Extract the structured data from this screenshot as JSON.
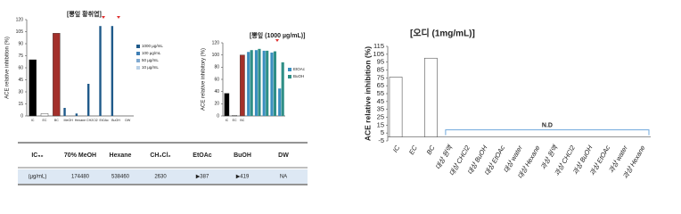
{
  "chart_data": [
    {
      "type": "bar",
      "title": "[뽕잎 황취엽]",
      "y_label": "ACE relative inhibition (%)",
      "ylim": [
        0,
        120
      ],
      "yticks": [
        0,
        15,
        30,
        45,
        60,
        75,
        90,
        105,
        120
      ],
      "controls": {
        "labels": [
          "IC",
          "EC",
          "BC"
        ],
        "values": [
          70,
          3,
          103
        ],
        "colors": [
          "#000000",
          "#ffffff",
          "#a3302b"
        ]
      },
      "categories": [
        "MeOH",
        "Hexane",
        "CH2Cl2",
        "EtOAc",
        "BuOH",
        "DW"
      ],
      "series": [
        {
          "name": "1000 µg/mL",
          "color": "#1f5a8a",
          "values": [
            10,
            3,
            40,
            112,
            112,
            null
          ]
        },
        {
          "name": "100 µg/mL",
          "color": "#3f7fb5",
          "values": [
            null,
            null,
            null,
            null,
            null,
            null
          ]
        },
        {
          "name": "50 µg/mL",
          "color": "#7fa9d0",
          "values": [
            null,
            null,
            null,
            null,
            null,
            null
          ]
        },
        {
          "name": "10 µg/mL",
          "color": "#b9d0e6",
          "values": [
            null,
            null,
            null,
            null,
            null,
            null
          ]
        }
      ],
      "legend": "right"
    },
    {
      "type": "bar",
      "title": "[뽕잎 (1000 µg/mL)]",
      "y_label": "ACE relative inhibitory (%)",
      "ylim": [
        0,
        120
      ],
      "yticks": [
        0,
        20,
        40,
        60,
        80,
        100,
        120
      ],
      "controls": {
        "labels": [
          "IC",
          "EC",
          "BC"
        ],
        "values": [
          37,
          1,
          100
        ],
        "colors": [
          "#000000",
          "#ffffff",
          "#a3302b"
        ]
      },
      "categories": [
        null,
        null,
        null,
        null,
        null
      ],
      "series": [
        {
          "name": "EtOAc",
          "color": "#3a8fbf",
          "values": [
            105,
            108,
            107,
            104,
            45
          ]
        },
        {
          "name": "BuOH",
          "color": "#2f8f86",
          "values": [
            108,
            110,
            107,
            106,
            88
          ]
        }
      ],
      "legend": "right"
    },
    {
      "type": "bar",
      "title": "[오디 (1mg/mL)]",
      "y_label": "ACE relative inhibition (%)",
      "ylim": [
        -5,
        115
      ],
      "yticks": [
        -5,
        5,
        15,
        25,
        35,
        45,
        55,
        65,
        75,
        85,
        95,
        105,
        115
      ],
      "categories": [
        "IC",
        "EC",
        "BC",
        "대상 원액",
        "대상 CHCl2",
        "대상 BuOH",
        "대상 EtOAc",
        "대상 water",
        "대상 Hexane",
        "과상 원액",
        "과상 CHCl2",
        "과상 BuOH",
        "과상 EtOAc",
        "과상 water",
        "과상 Hexane"
      ],
      "values": [
        76,
        null,
        100,
        null,
        null,
        null,
        null,
        null,
        null,
        null,
        null,
        null,
        null,
        null,
        null
      ],
      "color": "#ffffff",
      "annotation": "N.D"
    }
  ],
  "table": {
    "header": [
      "IC₅₀",
      "70% MeOH",
      "Hexane",
      "CH₂Cl₂",
      "EtOAc",
      "BuOH",
      "DW"
    ],
    "rows": [
      [
        "(µg/mL)",
        "174480",
        "538460",
        "2630",
        "▶387",
        "▶419",
        "NA"
      ]
    ]
  }
}
